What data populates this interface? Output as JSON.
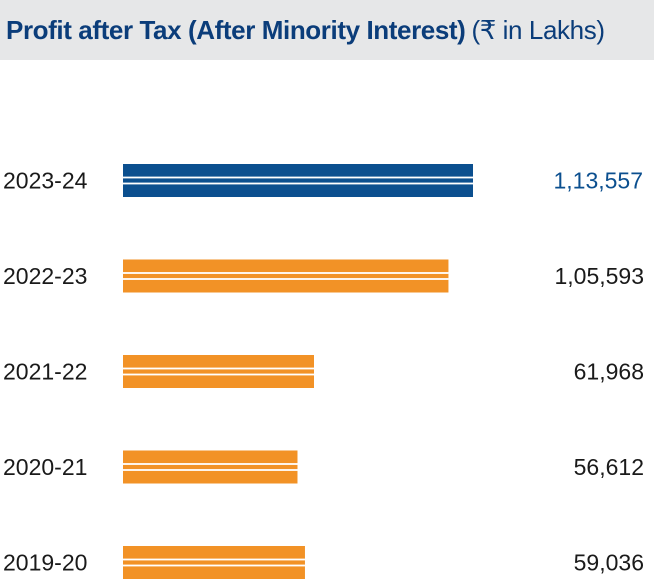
{
  "header": {
    "title_bold": "Profit after Tax (After Minority Interest)",
    "title_unit": "(₹ in Lakhs)"
  },
  "colors": {
    "highlight": "#0b4f8f",
    "default": "#f29226",
    "header_bg": "#e6e7e8",
    "title": "#0b3d7a"
  },
  "chart_data": {
    "type": "bar",
    "orientation": "horizontal",
    "title": "Profit after Tax (After Minority Interest)",
    "unit": "(₹ in Lakhs)",
    "categories": [
      "2023-24",
      "2022-23",
      "2021-22",
      "2020-21",
      "2019-20"
    ],
    "values": [
      113557,
      105593,
      61968,
      56612,
      59036
    ],
    "value_labels": [
      "1,13,557",
      "1,05,593",
      "61,968",
      "56,612",
      "59,036"
    ],
    "highlight_index": 0,
    "xlim": [
      0,
      113557
    ],
    "grid": false,
    "legend": "none"
  }
}
